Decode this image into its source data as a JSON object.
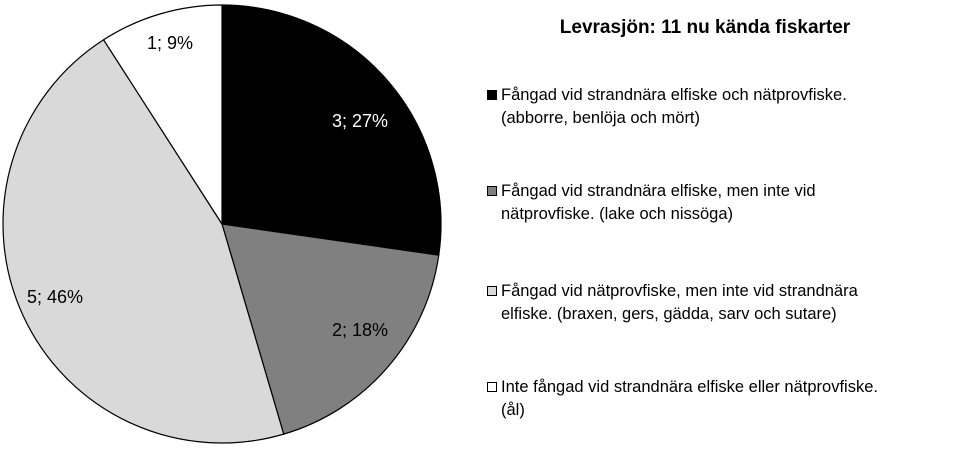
{
  "chart_data": {
    "type": "pie",
    "title": "Levrasjön: 11 nu kända fiskarter",
    "legend_position": "right",
    "slices": [
      {
        "label": "Fångad vid strandnära elfiske och nätprovfiske.\n(abborre, benlöja och mört)",
        "value": 3,
        "percent": 27,
        "data_label": "3; 27%",
        "color": "#000000",
        "label_color": "#ffffff"
      },
      {
        "label": "Fångad vid strandnära elfiske, men inte vid\nnätprovfiske. (lake och nissöga)",
        "value": 2,
        "percent": 18,
        "data_label": "2; 18%",
        "color": "#808080",
        "label_color": "#000000"
      },
      {
        "label": "Fångad vid nätprovfiske, men inte vid strandnära\nelfiske. (braxen, gers, gädda, sarv och sutare)",
        "value": 5,
        "percent": 46,
        "data_label": "5; 46%",
        "color": "#d9d9d9",
        "label_color": "#000000"
      },
      {
        "label": "Inte fångad vid strandnära elfiske eller nätprovfiske.\n(ål)",
        "value": 1,
        "percent": 9,
        "data_label": "1; 9%",
        "color": "#ffffff",
        "label_color": "#000000"
      }
    ]
  }
}
